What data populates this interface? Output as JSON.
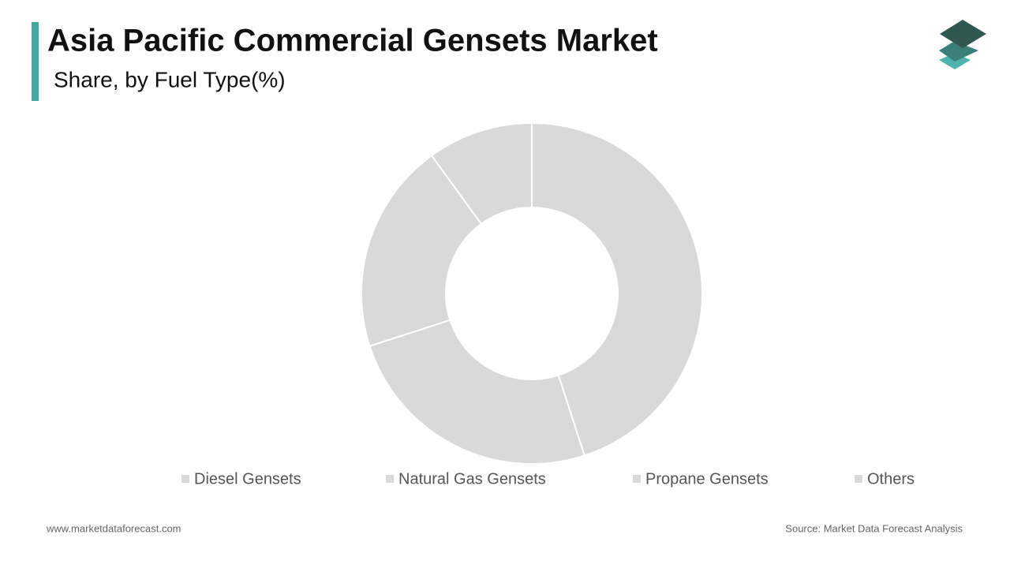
{
  "chart_data": {
    "type": "donut",
    "title": "Asia Pacific Commercial Gensets Market",
    "subtitle": "Share, by Fuel Type(%)",
    "categories": [
      "Diesel Gensets",
      "Natural Gas Gensets",
      "Propane Gensets",
      "Others"
    ],
    "values": [
      45,
      25,
      20,
      10
    ],
    "colors": [
      "#d9d9d9",
      "#d9d9d9",
      "#d9d9d9",
      "#d9d9d9"
    ]
  },
  "footer": {
    "website": "www.marketdataforecast.com",
    "source": "Source: Market Data Forecast Analysis"
  }
}
